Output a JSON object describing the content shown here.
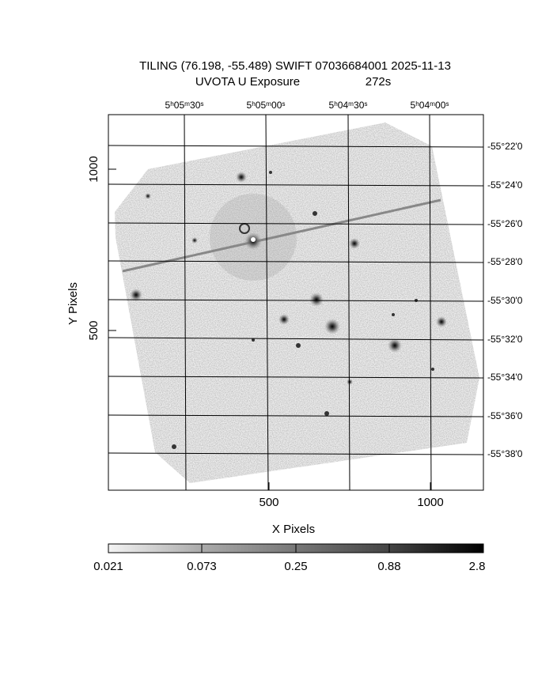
{
  "header": {
    "title": "TILING (76.198, -55.489) SWIFT 07036684001 2025-11-13",
    "filter": "UVOTA U Exposure",
    "exposure": "272s"
  },
  "x_axis": {
    "label": "X Pixels",
    "ticks": [
      "500",
      "1000"
    ]
  },
  "y_axis": {
    "label": "Y Pixels",
    "ticks": [
      "1000",
      "500"
    ]
  },
  "ra_ticks": [
    "5ʰ05ᵐ30ˢ",
    "5ʰ05ᵐ00ˢ",
    "5ʰ04ᵐ30ˢ",
    "5ʰ04ᵐ00ˢ"
  ],
  "dec_ticks": [
    "-55°22'0",
    "-55°24'0",
    "-55°26'0",
    "-55°28'0",
    "-55°30'0",
    "-55°32'0",
    "-55°34'0",
    "-55°36'0",
    "-55°38'0"
  ],
  "colorbar": {
    "labels": [
      "0.021",
      "0.073",
      "0.25",
      "0.88",
      "2.8"
    ]
  }
}
